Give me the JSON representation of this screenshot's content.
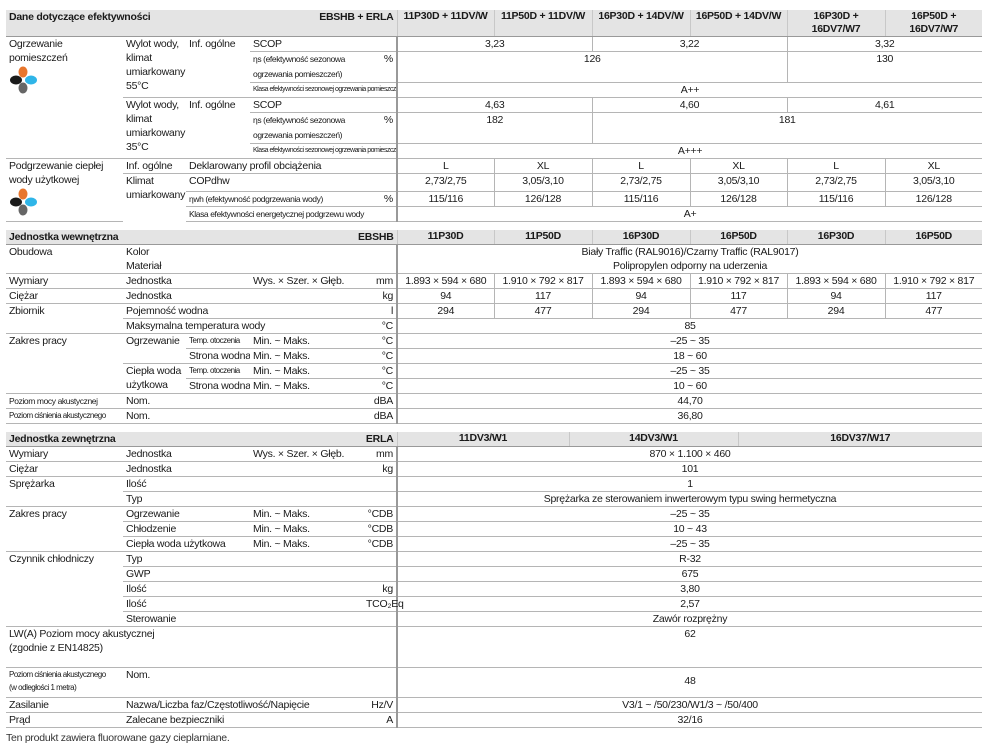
{
  "efficiency": {
    "title": "Dane dotyczące efektywności",
    "model_code": "EBSHB + ERLA",
    "columns": [
      "11P30D + 11DV/W",
      "11P50D + 11DV/W",
      "16P30D + 14DV/W",
      "16P50D + 14DV/W",
      "16P30D + 16DV7/W7",
      "16P50D + 16DV7/W7"
    ],
    "space_heating": "Ogrzewanie pomieszczeń",
    "c55": "Wylot wody, klimat umiarkowany 55°C",
    "c35": "Wylot wody, klimat umiarkowany 35°C",
    "general": "Inf. ogólne",
    "scop": "SCOP",
    "eta_s": "ηs (efektywność sezonowa ogrzewania pomieszczeń)",
    "pct": "%",
    "class_s": "Klasa efektywności sezonowej ogrzewania pomieszczeń",
    "scop55": [
      "3,23",
      "3,22",
      "3,32"
    ],
    "eta55": [
      "126",
      "130"
    ],
    "class55": "A++",
    "scop35": [
      "4,63",
      "4,60",
      "4,61"
    ],
    "eta35": [
      "182",
      "181"
    ],
    "class35": "A+++",
    "dhw": "Podgrzewanie ciepłej wody użytkowej",
    "profile": "Deklarowany profil obciążenia",
    "climate": "Klimat umiarkowany",
    "copdhw": "COPdhw",
    "eta_wh": "ηwh (efektywność podgrzewania wody)",
    "class_wh": "Klasa efektywności energetycznej podgrzewu wody",
    "profiles": [
      "L",
      "XL",
      "L",
      "XL",
      "L",
      "XL"
    ],
    "cop_values": [
      "2,73/2,75",
      "3,05/3,10",
      "2,73/2,75",
      "3,05/3,10",
      "2,73/2,75",
      "3,05/3,10"
    ],
    "eta_wh_values": [
      "115/116",
      "126/128",
      "115/116",
      "126/128",
      "115/116",
      "126/128"
    ],
    "class_wh_value": "A+",
    "icon_colors": [
      "#e8762d",
      "#1a1a1a",
      "#2fb5e8",
      "#666666"
    ]
  },
  "indoor": {
    "title": "Jednostka wewnętrzna",
    "model_code": "EBSHB",
    "columns": [
      "11P30D",
      "11P50D",
      "16P30D",
      "16P50D",
      "16P30D",
      "16P50D"
    ],
    "casing": "Obudowa",
    "color": "Kolor",
    "color_value": "Biały Traffic (RAL9016)/Czarny Traffic (RAL9017)",
    "material": "Materiał",
    "material_value": "Polipropylen odporny na uderzenia",
    "dims": "Wymiary",
    "unit": "Jednostka",
    "hwd": "Wys. × Szer. × Głęb.",
    "mm": "mm",
    "dims_values": [
      "1.893 × 594 × 680",
      "1.910 × 792 × 817",
      "1.893 × 594 × 680",
      "1.910 × 792 × 817",
      "1.893 × 594 × 680",
      "1.910 × 792 × 817"
    ],
    "weight": "Ciężar",
    "kg": "kg",
    "weight_values": [
      "94",
      "117",
      "94",
      "117",
      "94",
      "117"
    ],
    "tank": "Zbiornik",
    "volume": "Pojemność wodna",
    "l": "l",
    "volume_values": [
      "294",
      "477",
      "294",
      "477",
      "294",
      "477"
    ],
    "max_temp": "Maksymalna temperatura wody",
    "degc": "°C",
    "max_temp_value": "85",
    "range": "Zakres pracy",
    "heating": "Ogrzewanie",
    "dhw": "Ciepła woda użytkowa",
    "ambient": "Temp. otoczenia",
    "water_side": "Strona wodna",
    "minmax": "Min. ~ Maks.",
    "r_heat_amb": "–25 ~ 35",
    "r_heat_water": "18 ~ 60",
    "r_dhw_amb": "–25 ~ 35",
    "r_dhw_water": "10 ~ 60",
    "swl": "Poziom mocy akustycznej",
    "spl": "Poziom ciśnienia akustycznego",
    "nom": "Nom.",
    "dba": "dBA",
    "swl_value": "44,70",
    "spl_value": "36,80"
  },
  "outdoor": {
    "title": "Jednostka zewnętrzna",
    "model_code": "ERLA",
    "columns": [
      "11DV3/W1",
      "14DV3/W1",
      "16DV37/W17"
    ],
    "dims": "Wymiary",
    "unit": "Jednostka",
    "hwd": "Wys. × Szer. × Głęb.",
    "mm": "mm",
    "dims_value": "870 × 1.100 × 460",
    "weight": "Ciężar",
    "kg": "kg",
    "weight_value": "101",
    "compressor": "Sprężarka",
    "qty": "Ilość",
    "qty_value": "1",
    "type": "Typ",
    "type_value": "Sprężarka ze sterowaniem inwerterowym typu swing hermetyczna",
    "range": "Zakres pracy",
    "heating": "Ogrzewanie",
    "cooling": "Chłodzenie",
    "dhw": "Ciepła woda użytkowa",
    "minmax": "Min. ~ Maks.",
    "cdb": "°CDB",
    "r_heat": "–25 ~ 35",
    "r_cool": "10 ~ 43",
    "r_dhw": "–25 ~ 35",
    "refrigerant": "Czynnik chłodniczy",
    "ref_type": "R-32",
    "gwp": "GWP",
    "gwp_value": "675",
    "ref_kg": "3,80",
    "tco2": "TCO₂Eq",
    "ref_tco2": "2,57",
    "control": "Sterowanie",
    "control_value": "Zawór rozprężny",
    "lwa": "LW(A) Poziom mocy akustycznej (zgodnie z EN14825)",
    "lwa_value": "62",
    "spl": "Poziom ciśnienia akustycznego",
    "spl_note": "(w odległości 1 metra)",
    "nom": "Nom.",
    "spl_value": "48",
    "power": "Zasilanie",
    "power_desc": "Nazwa/Liczba faz/Częstotliwość/Napięcie",
    "hzv": "Hz/V",
    "power_value": "V3/1 ~ /50/230/W1/3 ~ /50/400",
    "current": "Prąd",
    "fuse": "Zalecane bezpieczniki",
    "a": "A",
    "fuse_value": "32/16"
  },
  "footnote": "Ten produkt zawiera fluorowane gazy cieplarniane."
}
